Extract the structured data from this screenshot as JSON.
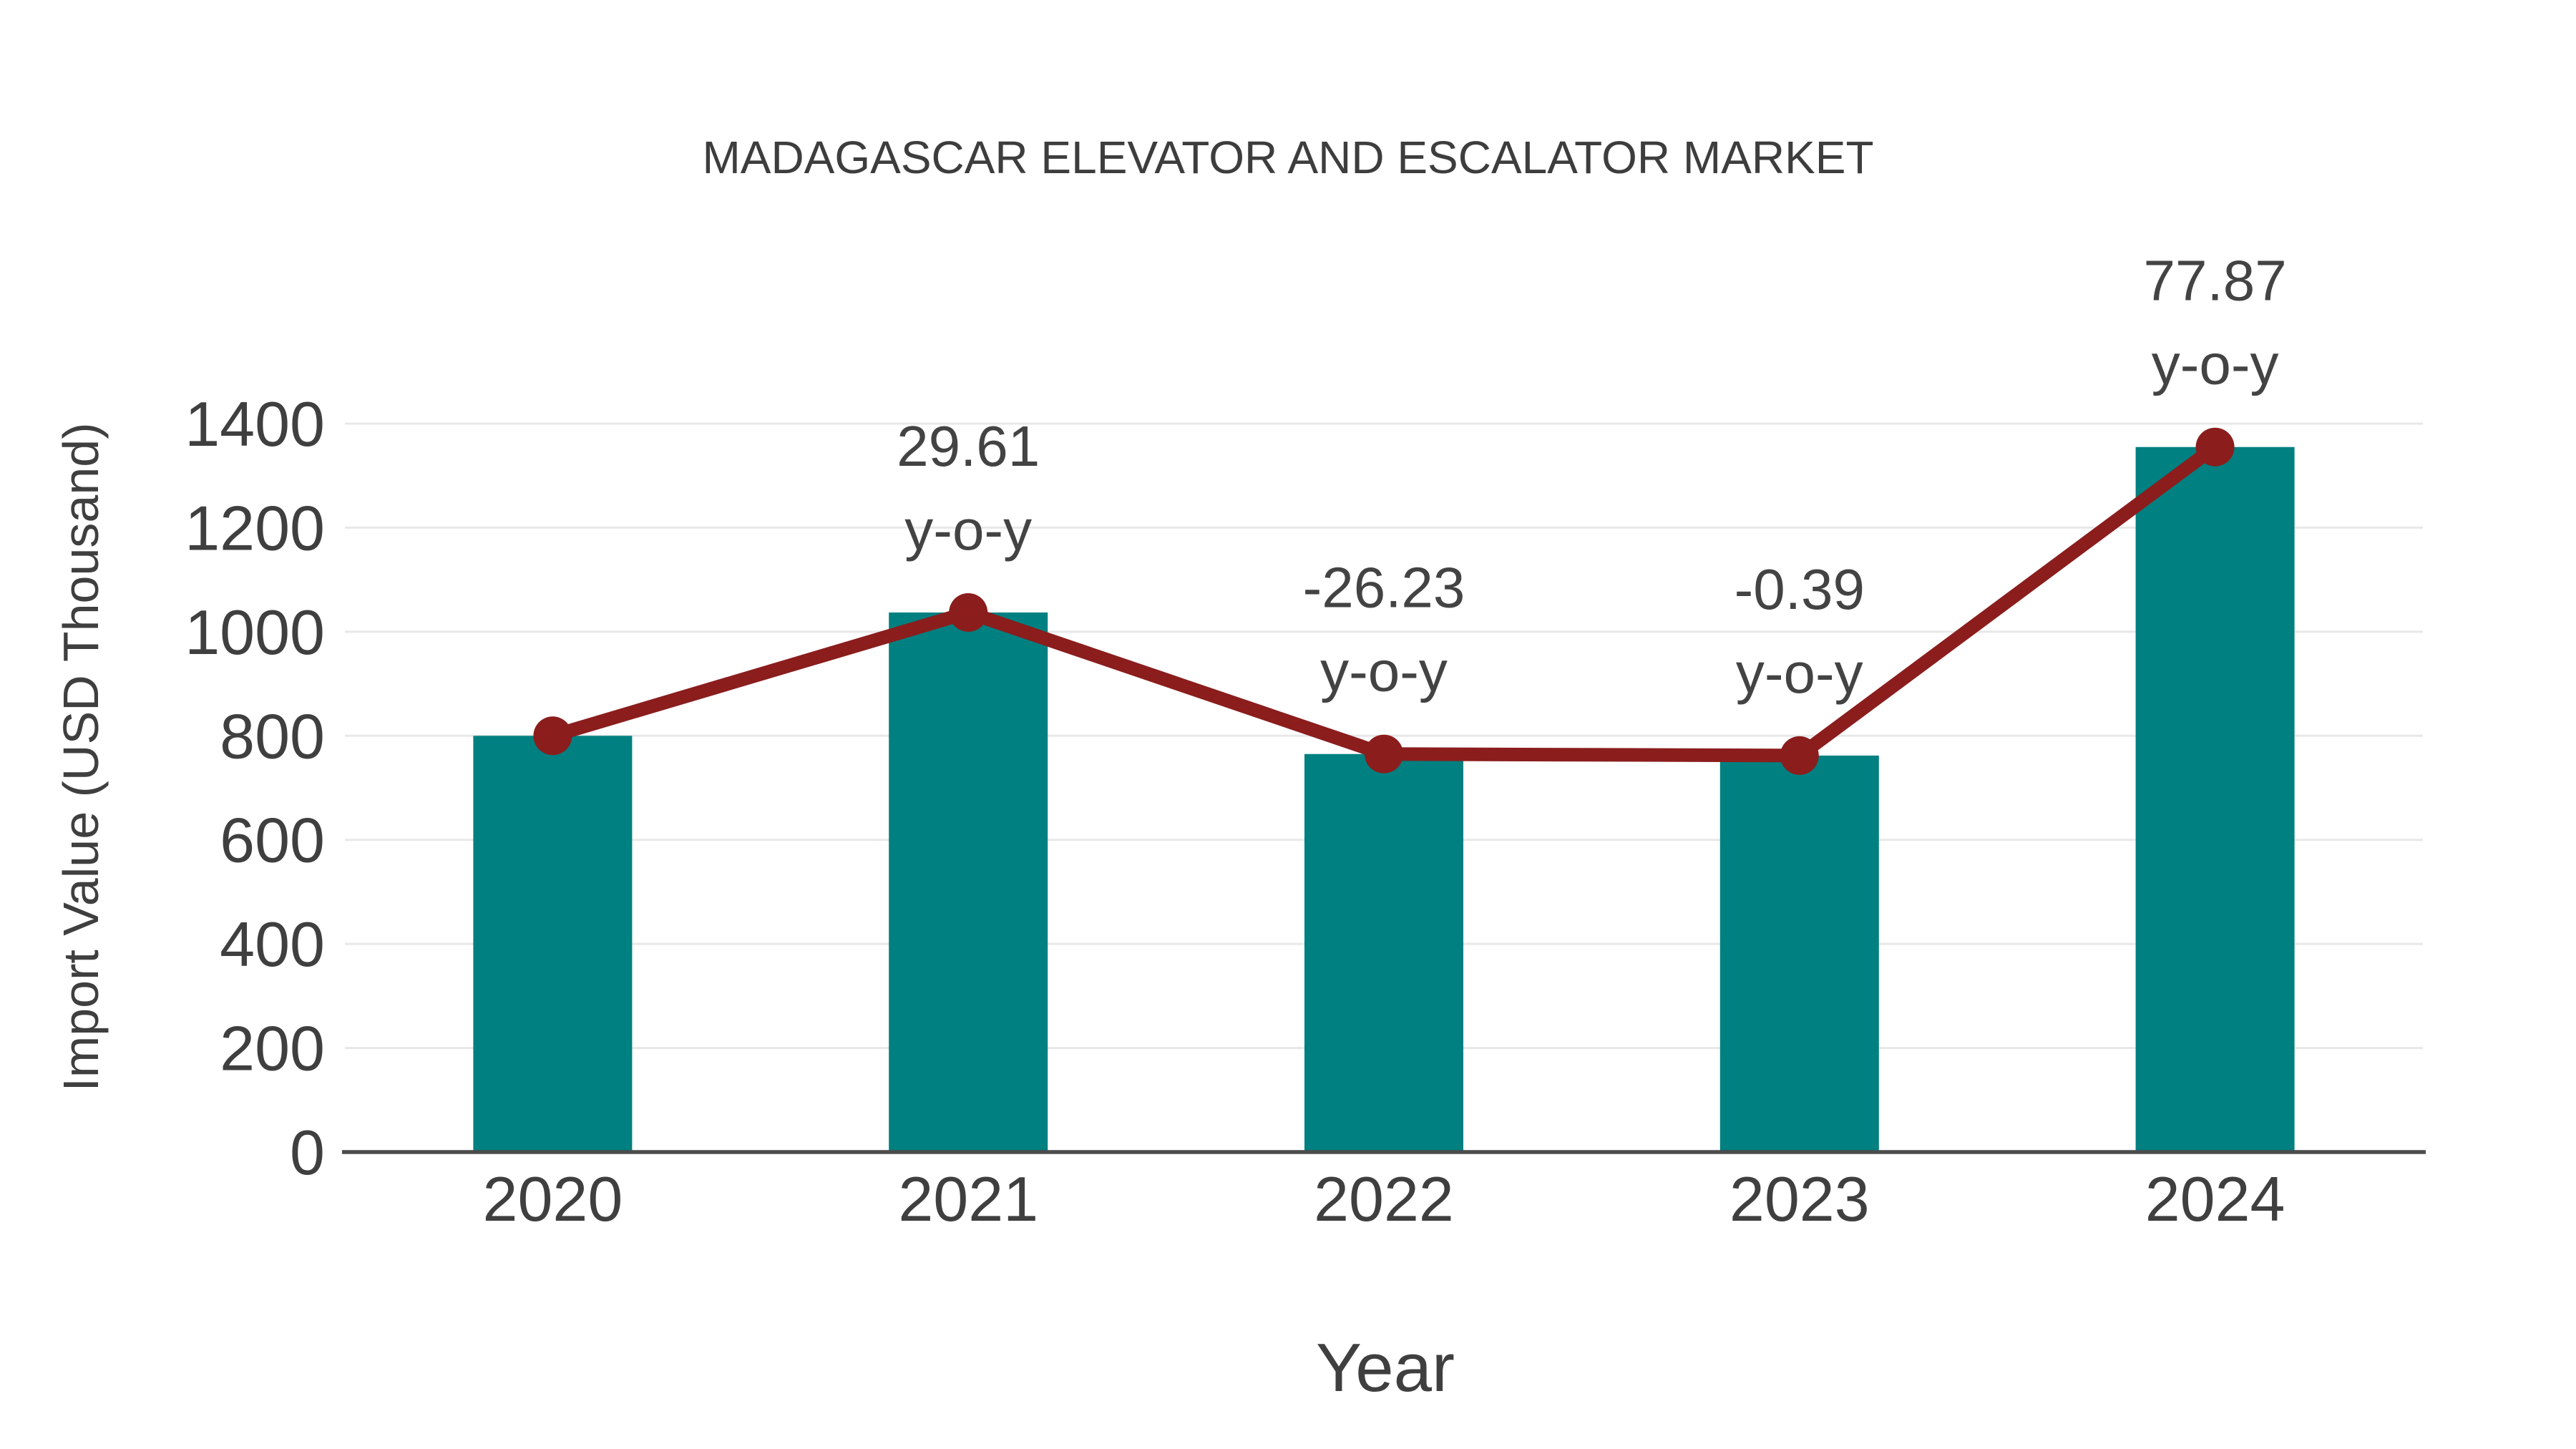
{
  "page": {
    "background": "#ffffff"
  },
  "chart_data": {
    "type": "bar",
    "title": "MADAGASCAR ELEVATOR AND ESCALATOR MARKET",
    "xlabel": "Year",
    "ylabel": "Import Value (USD Thousand)",
    "categories": [
      "2020",
      "2021",
      "2022",
      "2023",
      "2024"
    ],
    "series": [
      {
        "name": "Import Value",
        "type": "bar",
        "color": "#008080",
        "values": [
          800,
          1037,
          765,
          762,
          1355
        ]
      },
      {
        "name": "Import Value trend",
        "type": "line",
        "color": "#8b1d1d",
        "values": [
          800,
          1037,
          765,
          762,
          1355
        ]
      }
    ],
    "annotations": [
      {
        "category": "2021",
        "value_label": "29.61",
        "sub_label": "y-o-y",
        "yoy_percent": 29.61
      },
      {
        "category": "2022",
        "value_label": "-26.23",
        "sub_label": "y-o-y",
        "yoy_percent": -26.23
      },
      {
        "category": "2023",
        "value_label": "-0.39",
        "sub_label": "y-o-y",
        "yoy_percent": -0.39
      },
      {
        "category": "2024",
        "value_label": "77.87",
        "sub_label": "y-o-y",
        "yoy_percent": 77.87
      }
    ],
    "ylim": [
      0,
      1400
    ],
    "yticks": [
      0,
      200,
      400,
      600,
      800,
      1000,
      1200,
      1400
    ],
    "grid": "horizontal",
    "legend": "none",
    "colors": {
      "bar": "#008080",
      "line": "#8b1d1d",
      "marker": "#8b1d1d",
      "gridline": "#e8e8e8",
      "axis_line": "#4b4b4b",
      "text": "#3f3f3f"
    }
  }
}
